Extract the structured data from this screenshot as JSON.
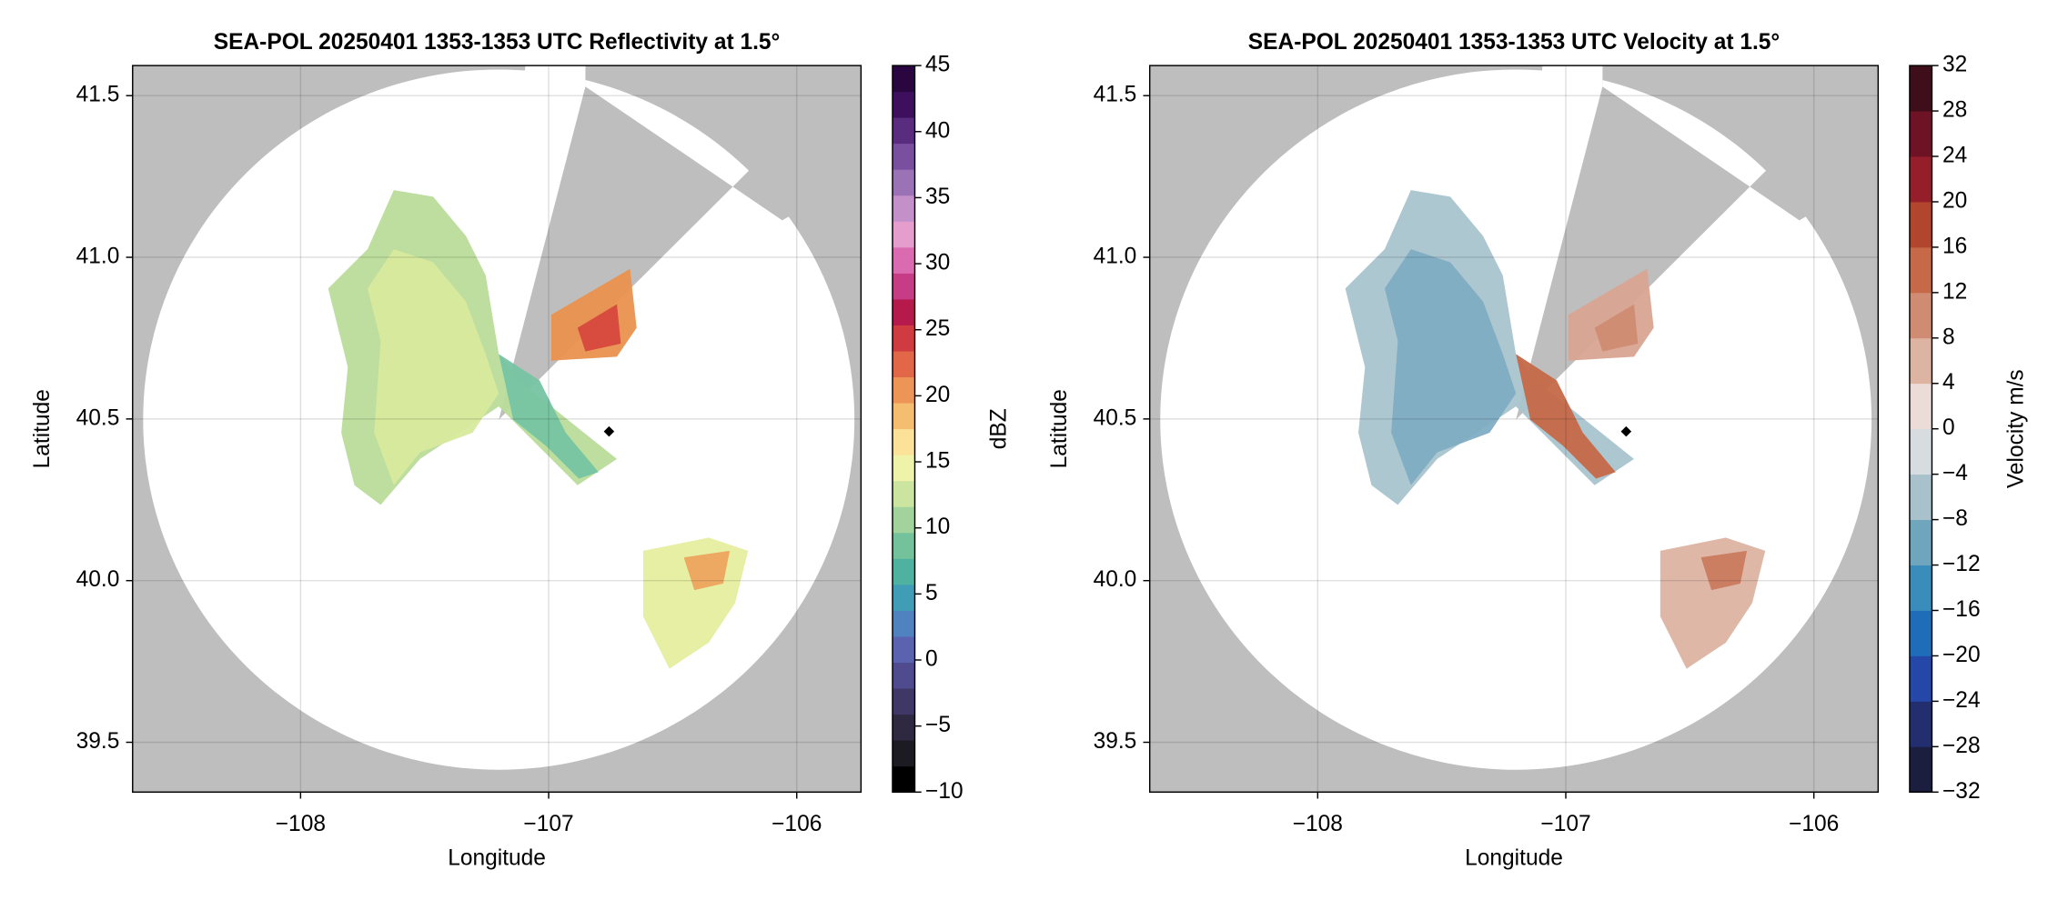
{
  "chart_data": [
    {
      "type": "radar",
      "title": "SEA-POL 20250401 1353-1353 UTC Reflectivity at 1.5°",
      "xlabel": "Longitude",
      "ylabel": "Latitude",
      "xlim": [
        -108.677,
        -105.741
      ],
      "ylim": [
        39.346,
        41.593
      ],
      "xticks": [
        {
          "value": -108,
          "label": "−108"
        },
        {
          "value": -107,
          "label": "−107"
        },
        {
          "value": -106,
          "label": "−106"
        }
      ],
      "yticks": [
        39.5,
        {
          "value": 40,
          "label": "40.0"
        },
        40.5,
        {
          "value": 41,
          "label": "41.0"
        },
        41.5
      ],
      "grid": true,
      "colorbar": {
        "label": "dBZ",
        "lim": [
          -10,
          45
        ],
        "ticks": [
          {
            "value": -10,
            "label": "−10"
          },
          {
            "value": -5,
            "label": "−5"
          },
          0,
          5,
          10,
          15,
          20,
          25,
          30,
          35,
          40,
          45
        ],
        "colors": [
          "#000000",
          "#1c1a22",
          "#2e2940",
          "#3f3866",
          "#4f4b8e",
          "#5b62b0",
          "#4f82be",
          "#3f9db5",
          "#4fb1a0",
          "#74c29b",
          "#a2d39c",
          "#cbe5a0",
          "#eff3aa",
          "#fbe298",
          "#f5bd70",
          "#ed9556",
          "#e26648",
          "#cf3b40",
          "#b6194c",
          "#c63d86",
          "#db6bb0",
          "#e59dcd",
          "#c490c9",
          "#9c72b6",
          "#7a4fa0",
          "#5a2c80",
          "#3d0f5c",
          "#2a0640"
        ]
      }
    },
    {
      "type": "radar",
      "title": "SEA-POL 20250401 1353-1353 UTC Velocity at 1.5°",
      "xlabel": "Longitude",
      "ylabel": "Latitude",
      "xlim": [
        -108.677,
        -105.741
      ],
      "ylim": [
        39.346,
        41.593
      ],
      "xticks": [
        {
          "value": -108,
          "label": "−108"
        },
        {
          "value": -107,
          "label": "−107"
        },
        {
          "value": -106,
          "label": "−106"
        }
      ],
      "yticks": [
        39.5,
        {
          "value": 40,
          "label": "40.0"
        },
        40.5,
        {
          "value": 41,
          "label": "41.0"
        },
        41.5
      ],
      "grid": true,
      "colorbar": {
        "label": "Velocity m/s",
        "lim": [
          -32,
          32
        ],
        "ticks": [
          {
            "value": -32,
            "label": "−32"
          },
          {
            "value": -28,
            "label": "−28"
          },
          {
            "value": -24,
            "label": "−24"
          },
          {
            "value": -20,
            "label": "−20"
          },
          {
            "value": -16,
            "label": "−16"
          },
          {
            "value": -12,
            "label": "−12"
          },
          {
            "value": -8,
            "label": "−8"
          },
          {
            "value": -4,
            "label": "−4"
          },
          0,
          4,
          8,
          12,
          16,
          20,
          24,
          28,
          32
        ],
        "colors": [
          "#1b1e3f",
          "#222e6e",
          "#2447a8",
          "#1f6db9",
          "#3a8cbb",
          "#6fa5bd",
          "#a8c1cb",
          "#d6dcdf",
          "#ecdcd8",
          "#ddb3a2",
          "#cf8c72",
          "#c56948",
          "#b2452e",
          "#951e2b",
          "#6e1226",
          "#3e0f1b"
        ]
      }
    }
  ]
}
